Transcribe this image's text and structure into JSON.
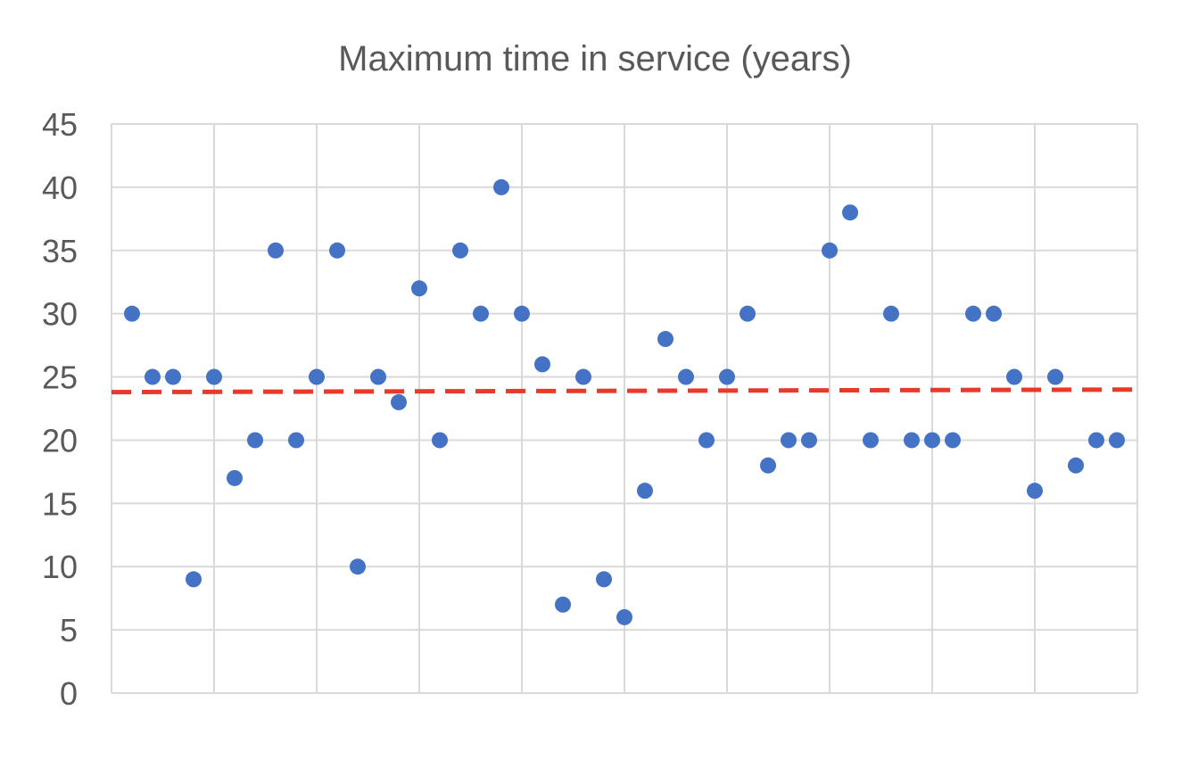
{
  "chart_data": {
    "type": "scatter",
    "title": "Maximum time in service (years)",
    "xlabel": "",
    "ylabel": "",
    "ylim": [
      0,
      45
    ],
    "y_ticks": [
      "0",
      "5",
      "10",
      "15",
      "20",
      "25",
      "30",
      "35",
      "40",
      "45"
    ],
    "x_axis_tick_labels": false,
    "x_range": [
      0,
      50
    ],
    "x_gridline_every": 5,
    "grid": true,
    "legend": "none",
    "series": [
      {
        "color": "#4472C4",
        "x": [
          1,
          2,
          3,
          4,
          5,
          6,
          7,
          8,
          9,
          10,
          11,
          12,
          13,
          14,
          15,
          16,
          17,
          18,
          19,
          20,
          21,
          22,
          23,
          24,
          25,
          26,
          27,
          28,
          29,
          30,
          31,
          32,
          33,
          34,
          35,
          36,
          37,
          38,
          39,
          40,
          41,
          42,
          43,
          44,
          45,
          46,
          47,
          48,
          49
        ],
        "y": [
          30,
          25,
          25,
          9,
          25,
          17,
          20,
          35,
          20,
          25,
          35,
          10,
          25,
          23,
          32,
          20,
          35,
          30,
          40,
          30,
          26,
          7,
          25,
          9,
          6,
          16,
          28,
          25,
          20,
          25,
          30,
          18,
          20,
          20,
          35,
          38,
          20,
          30,
          20,
          20,
          20,
          30,
          30,
          25,
          16,
          25,
          18,
          20,
          20
        ]
      }
    ],
    "reference_line": {
      "style": "dashed",
      "color": "#E8392B",
      "y_start": 23.8,
      "y_end": 24.0
    }
  }
}
